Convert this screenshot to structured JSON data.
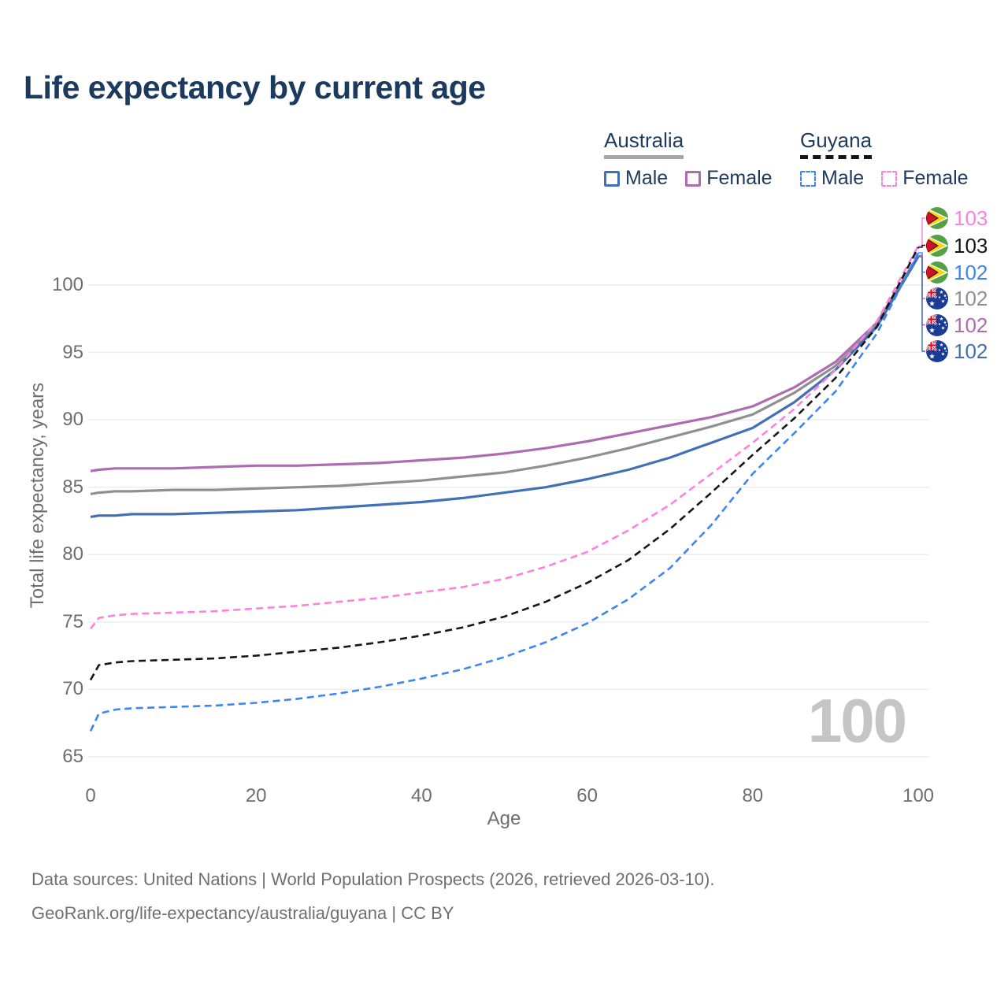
{
  "title": "Life expectancy by current age",
  "watermark": "100",
  "legend": {
    "groups": [
      {
        "country": "Australia",
        "underline_style": "solid",
        "underline_color": "#a6a6a6",
        "items": [
          {
            "label": "Male",
            "color": "#4170b4",
            "dash": false
          },
          {
            "label": "Female",
            "color": "#ad6cb2",
            "dash": false
          }
        ]
      },
      {
        "country": "Guyana",
        "underline_style": "dashed",
        "underline_color": "#141414",
        "items": [
          {
            "label": "Male",
            "color": "#3d85f5",
            "dash": true
          },
          {
            "label": "Female",
            "color": "#ff80df",
            "dash": true
          }
        ]
      }
    ]
  },
  "axes": {
    "x": {
      "label": "Age",
      "ticks": [
        0,
        20,
        40,
        60,
        80,
        100
      ],
      "range": [
        0,
        100
      ]
    },
    "y": {
      "label": "Total life expectancy, years",
      "ticks": [
        65,
        70,
        75,
        80,
        85,
        90,
        95,
        100
      ],
      "range": [
        65,
        100
      ]
    }
  },
  "chart_data": {
    "type": "line",
    "title": "Life expectancy by current age",
    "xlabel": "Age",
    "ylabel": "Total life expectancy, years",
    "xlim": [
      0,
      100
    ],
    "ylim": [
      65,
      100
    ],
    "grid": true,
    "legend_position": "top-right",
    "x": [
      0,
      1,
      3,
      5,
      10,
      15,
      20,
      25,
      30,
      35,
      40,
      45,
      50,
      55,
      60,
      65,
      70,
      75,
      80,
      85,
      90,
      95,
      100
    ],
    "series": [
      {
        "name": "Australia Female",
        "country": "Australia",
        "sex": "Female",
        "color": "#ad6cb2",
        "line_style": "solid",
        "values": [
          86.2,
          86.3,
          86.4,
          86.4,
          86.4,
          86.5,
          86.6,
          86.6,
          86.7,
          86.8,
          87.0,
          87.2,
          87.5,
          87.9,
          88.4,
          89.0,
          89.6,
          90.2,
          91.0,
          92.4,
          94.3,
          97.2,
          102.2
        ]
      },
      {
        "name": "Australia Total",
        "country": "Australia",
        "sex": "Both",
        "color": "#909090",
        "line_style": "solid",
        "values": [
          84.5,
          84.6,
          84.7,
          84.7,
          84.8,
          84.8,
          84.9,
          85.0,
          85.1,
          85.3,
          85.5,
          85.8,
          86.1,
          86.6,
          87.2,
          87.9,
          88.7,
          89.5,
          90.4,
          92.0,
          94.0,
          97.0,
          102.2
        ]
      },
      {
        "name": "Australia Male",
        "country": "Australia",
        "sex": "Male",
        "color": "#4170b4",
        "line_style": "solid",
        "values": [
          82.8,
          82.9,
          82.9,
          83.0,
          83.0,
          83.1,
          83.2,
          83.3,
          83.5,
          83.7,
          83.9,
          84.2,
          84.6,
          85.0,
          85.6,
          86.3,
          87.2,
          88.3,
          89.4,
          91.3,
          93.7,
          96.9,
          102.1
        ]
      },
      {
        "name": "Guyana Female",
        "country": "Guyana",
        "sex": "Female",
        "color": "#ff80df",
        "line_style": "dashed",
        "values": [
          74.5,
          75.3,
          75.5,
          75.6,
          75.7,
          75.8,
          76.0,
          76.2,
          76.5,
          76.8,
          77.2,
          77.6,
          78.2,
          79.1,
          80.2,
          81.8,
          83.7,
          86.0,
          88.3,
          90.8,
          93.7,
          97.3,
          102.9
        ]
      },
      {
        "name": "Guyana Total",
        "country": "Guyana",
        "sex": "Both",
        "color": "#161616",
        "line_style": "dashed",
        "values": [
          70.7,
          71.8,
          72.0,
          72.1,
          72.2,
          72.3,
          72.5,
          72.8,
          73.1,
          73.5,
          74.0,
          74.6,
          75.4,
          76.5,
          77.9,
          79.6,
          81.9,
          84.6,
          87.4,
          90.1,
          93.1,
          96.9,
          102.8
        ]
      },
      {
        "name": "Guyana Male",
        "country": "Guyana",
        "sex": "Male",
        "color": "#3d85f5",
        "line_style": "dashed",
        "values": [
          66.9,
          68.2,
          68.5,
          68.6,
          68.7,
          68.8,
          69.0,
          69.3,
          69.7,
          70.2,
          70.8,
          71.5,
          72.4,
          73.5,
          74.9,
          76.7,
          79.0,
          82.2,
          86.0,
          89.0,
          92.1,
          96.4,
          102.4
        ]
      }
    ]
  },
  "end_labels": [
    {
      "series": "Guyana Female",
      "value": "103",
      "color": "#ff80df",
      "flag": "guyana"
    },
    {
      "series": "Guyana Total",
      "value": "103",
      "color": "#161616",
      "flag": "guyana"
    },
    {
      "series": "Guyana Male",
      "value": "102",
      "color": "#3d85f5",
      "flag": "guyana"
    },
    {
      "series": "Australia Total",
      "value": "102",
      "color": "#909090",
      "flag": "australia"
    },
    {
      "series": "Australia Female",
      "value": "102",
      "color": "#ad6cb2",
      "flag": "australia"
    },
    {
      "series": "Australia Male",
      "value": "102",
      "color": "#4170b4",
      "flag": "australia"
    }
  ],
  "footer": {
    "line1": "Data sources: United Nations | World Population Prospects (2026, retrieved 2026-03-10).",
    "line2": "GeoRank.org/life-expectancy/australia/guyana | CC BY"
  }
}
